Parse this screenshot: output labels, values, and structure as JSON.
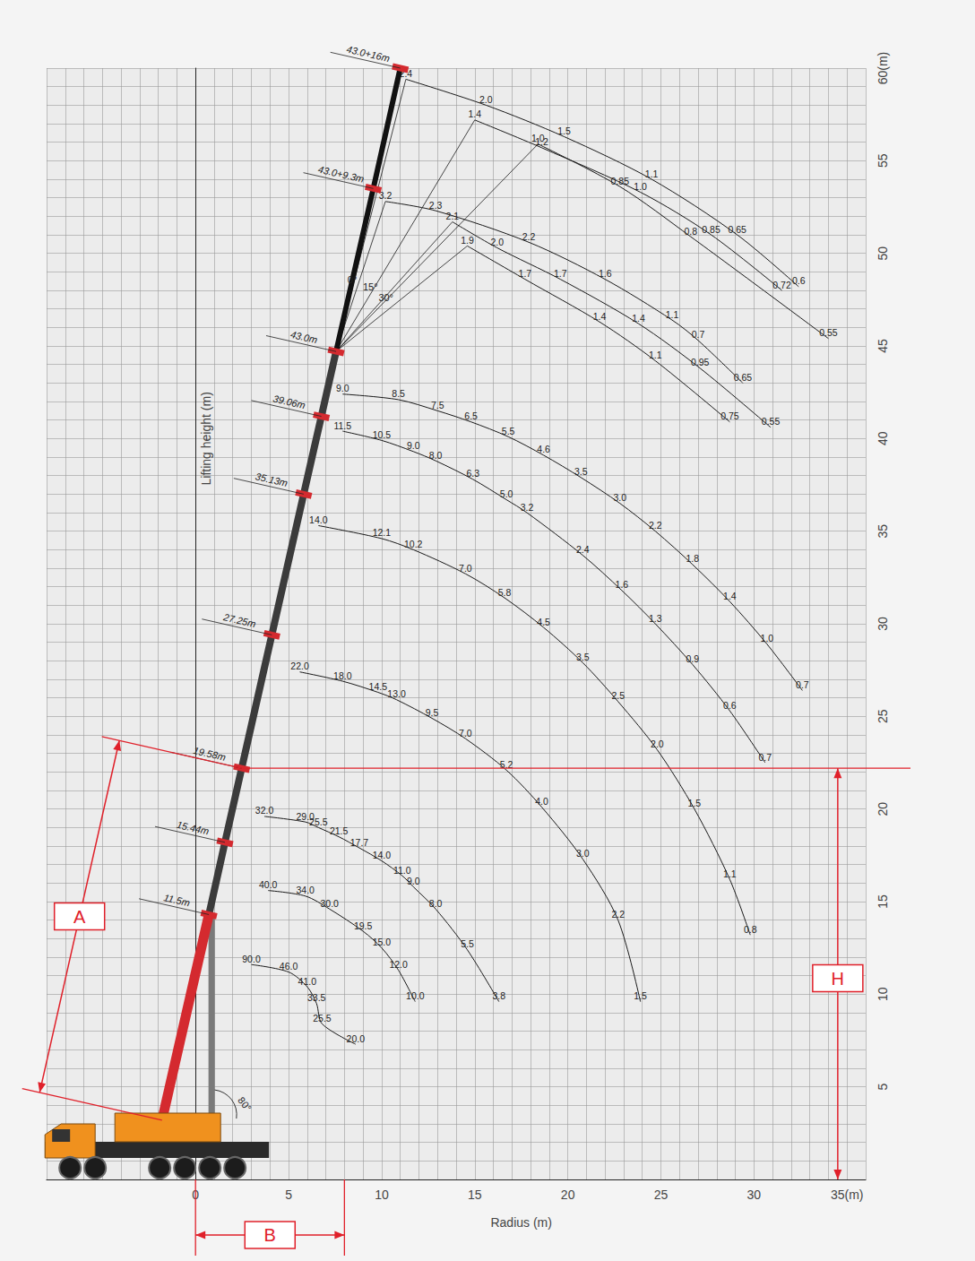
{
  "chart_data": {
    "type": "line",
    "x_label": "Radius (m)",
    "y_label": "Lifting height (m)",
    "xlim": [
      -8,
      36
    ],
    "xticks": [
      0,
      5,
      10,
      15,
      20,
      25,
      30,
      {
        "value": 35,
        "label": "35(m)"
      }
    ],
    "ylim": [
      0,
      60
    ],
    "yticks": [
      5,
      10,
      15,
      20,
      25,
      30,
      35,
      40,
      45,
      50,
      55,
      {
        "value": 60,
        "label": "60(m)"
      }
    ],
    "grid": true,
    "data_labels": true,
    "color": "#1a1a1a",
    "curves": [
      {
        "boom": "11.5m",
        "x": [
          3.0,
          5.0,
          6.0,
          6.5,
          6.8,
          8.6
        ],
        "values": [
          11.6,
          11.2,
          10.4,
          9.5,
          8.4,
          7.3
        ],
        "loads": [
          "90.0",
          "46.0",
          "41.0",
          "33.5",
          "25.5",
          "20.0"
        ]
      },
      {
        "boom": "15.44m",
        "x": [
          3.9,
          5.9,
          7.2,
          9.0,
          10.0,
          10.9,
          11.8
        ],
        "values": [
          15.6,
          15.3,
          14.6,
          13.4,
          12.5,
          11.3,
          9.6
        ],
        "loads": [
          "40.0",
          "34.0",
          "30.0",
          "19.5",
          "15.0",
          "12.0",
          "10.0"
        ]
      },
      {
        "boom": "19.58m",
        "x": [
          3.7,
          5.9,
          6.6,
          7.7,
          8.8,
          10.0,
          11.1,
          11.7,
          12.9,
          14.6,
          16.3
        ],
        "values": [
          19.6,
          19.3,
          19.0,
          18.5,
          17.9,
          17.2,
          16.4,
          15.8,
          14.6,
          12.4,
          9.6
        ],
        "loads": [
          "32.0",
          "29.0",
          "25.5",
          "21.5",
          "17.7",
          "14.0",
          "11.0",
          "9.0",
          "8.0",
          "5.5",
          "3.8"
        ]
      },
      {
        "boom": "27.25m",
        "x": [
          5.6,
          7.9,
          9.8,
          10.8,
          12.7,
          14.5,
          16.7,
          18.6,
          20.8,
          22.7,
          23.9
        ],
        "values": [
          27.4,
          26.9,
          26.3,
          25.9,
          24.9,
          23.8,
          22.1,
          20.1,
          17.3,
          14.0,
          9.6
        ],
        "loads": [
          "22.0",
          "18.0",
          "14.5",
          "13.0",
          "9.5",
          "7.0",
          "5.2",
          "4.0",
          "3.0",
          "2.2",
          "1.5"
        ]
      },
      {
        "boom": "35.13m",
        "x": [
          6.6,
          10.0,
          11.7,
          14.5,
          16.6,
          18.7,
          20.8,
          22.7,
          24.8,
          26.8,
          28.7,
          29.8
        ],
        "values": [
          35.3,
          34.6,
          34.0,
          32.7,
          31.4,
          29.8,
          27.9,
          25.8,
          23.2,
          20.0,
          16.2,
          13.2
        ],
        "loads": [
          "14.0",
          "12.1",
          "10.2",
          "7.0",
          "5.8",
          "4.5",
          "3.5",
          "2.5",
          "2.0",
          "1.5",
          "1.1",
          "0.8"
        ]
      },
      {
        "boom": "39.06m",
        "x": [
          7.9,
          10.0,
          11.7,
          12.9,
          14.9,
          16.7,
          17.8,
          20.8,
          22.9,
          24.7,
          26.7,
          28.7,
          30.6
        ],
        "values": [
          40.4,
          39.9,
          39.3,
          38.8,
          37.8,
          36.7,
          36.0,
          33.7,
          31.8,
          30.0,
          27.8,
          25.3,
          22.5
        ],
        "loads": [
          "11.5",
          "10.5",
          "9.0",
          "8.0",
          "6.3",
          "5.0",
          "3.2",
          "2.4",
          "1.6",
          "1.3",
          "0.9",
          "0.6",
          "0.7"
        ]
      },
      {
        "boom": "43.0m",
        "x": [
          7.9,
          10.9,
          13.0,
          14.8,
          16.8,
          18.7,
          20.7,
          22.8,
          24.7,
          26.7,
          28.7,
          30.7,
          32.6
        ],
        "values": [
          42.4,
          42.1,
          41.5,
          40.9,
          40.1,
          39.1,
          37.9,
          36.5,
          35.0,
          33.2,
          31.2,
          28.9,
          26.4
        ],
        "loads": [
          "9.0",
          "8.5",
          "7.5",
          "6.5",
          "5.5",
          "4.6",
          "3.5",
          "3.0",
          "2.2",
          "1.8",
          "1.4",
          "1.0",
          "0.7"
        ]
      },
      {
        "boom": "43.0+9.3m",
        "x": [
          10.2,
          12.9,
          17.9,
          22.0,
          25.6,
          27.0,
          29.4
        ],
        "values": [
          52.8,
          52.3,
          50.6,
          48.6,
          46.4,
          45.3,
          43.0
        ],
        "loads": [
          "3.2",
          "2.3",
          "2.2",
          "1.6",
          "1.1",
          "0.7",
          "0.65"
        ]
      },
      {
        "boom": "43.0+9.3m",
        "x": [
          13.8,
          16.2,
          19.6,
          23.8,
          27.1,
          30.9
        ],
        "values": [
          51.7,
          50.3,
          48.6,
          46.2,
          43.8,
          40.6
        ],
        "loads": [
          "2.1",
          "2.0",
          "1.7",
          "1.4",
          "0.95",
          "0.55"
        ]
      },
      {
        "boom": "43.0+9.3m",
        "x": [
          14.6,
          17.7,
          21.7,
          24.7,
          28.7
        ],
        "values": [
          50.4,
          48.6,
          46.3,
          44.2,
          40.9
        ],
        "loads": [
          "1.9",
          "1.7",
          "1.4",
          "1.1",
          "0.75"
        ]
      },
      {
        "boom": "43.0+16m",
        "offset": "0°",
        "x": [
          11.3,
          15.6,
          19.8,
          24.5,
          29.1,
          32.4
        ],
        "values": [
          59.4,
          58.0,
          56.3,
          54.0,
          51.0,
          48.2
        ],
        "loads": [
          "2.4",
          "2.0",
          "1.5",
          "1.1",
          "0.65",
          "0.6"
        ]
      },
      {
        "boom": "43.0+16m",
        "offset": "15°",
        "x": [
          15.0,
          18.6,
          23.9,
          27.7,
          31.5
        ],
        "values": [
          57.2,
          55.7,
          53.3,
          51.0,
          48.0
        ],
        "loads": [
          "1.4",
          "1.2",
          "1.0",
          "0.85",
          "0.72"
        ]
      },
      {
        "boom": "43.0+16m",
        "offset": "30°",
        "x": [
          18.4,
          22.8,
          26.6,
          34.0
        ],
        "values": [
          55.9,
          53.6,
          50.9,
          45.4
        ],
        "loads": [
          "1.0",
          "0.85",
          "0.8",
          "0.55"
        ]
      }
    ],
    "boom": {
      "base": [
        -1.8,
        3.2
      ],
      "angle_label": "80°",
      "sections": [
        {
          "name": "11.5m",
          "x": 0.72,
          "y": 14.3
        },
        {
          "name": "15.44m",
          "x": 1.58,
          "y": 18.2
        },
        {
          "name": "19.58m",
          "x": 2.48,
          "y": 22.2
        },
        {
          "name": "27.25m",
          "x": 4.1,
          "y": 29.4
        },
        {
          "name": "35.13m",
          "x": 5.81,
          "y": 37.0
        },
        {
          "name": "39.06m",
          "x": 6.76,
          "y": 41.2
        },
        {
          "name": "43.0m",
          "x": 7.55,
          "y": 44.7
        },
        {
          "name": "43.0+9.3m",
          "x": 9.55,
          "y": 53.5
        },
        {
          "name": "43.0+16m",
          "x": 11.0,
          "y": 60.0
        }
      ]
    },
    "annotations": {
      "height": {
        "label": "H",
        "x": 34.5,
        "y": [
          0,
          22.2
        ]
      },
      "radius": {
        "label": "B",
        "x": [
          0,
          8
        ]
      },
      "boom_length": {
        "label": "A",
        "to": "19.58m"
      }
    }
  }
}
